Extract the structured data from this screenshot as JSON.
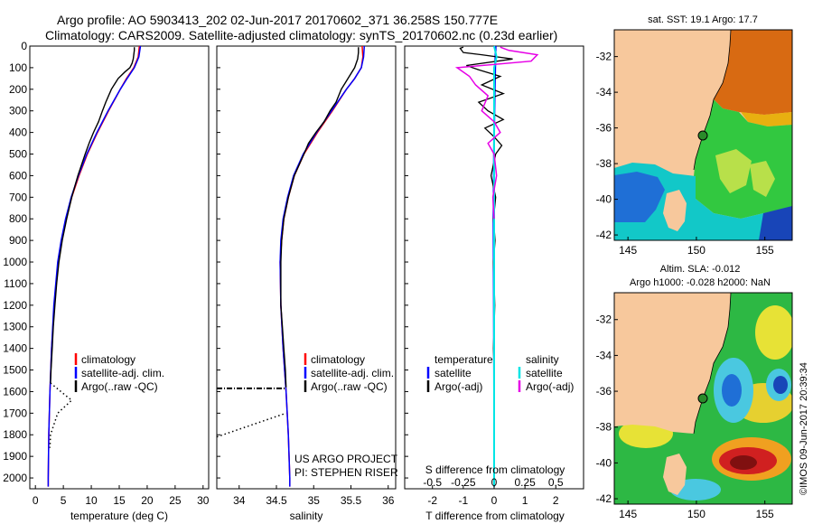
{
  "header": {
    "line1": "Argo profile: AO 5903413_202 02-Jun-2017 20170602_371 36.258S 150.777E",
    "line2": "Climatology: CARS2009. Satellite-adjusted climatology: synTS_20170602.nc (0.23d earlier)"
  },
  "depth_ticks": [
    "0",
    "100",
    "200",
    "300",
    "400",
    "500",
    "600",
    "700",
    "800",
    "900",
    "1000",
    "1100",
    "1200",
    "1300",
    "1400",
    "1500",
    "1600",
    "1700",
    "1800",
    "1900",
    "2000"
  ],
  "colors": {
    "climatology": "#ff0000",
    "satellite": "#0000ff",
    "argo": "#000000",
    "sal_satellite": "#00e5e5",
    "sal_argo": "#e600e6"
  },
  "chart_data": [
    {
      "type": "line",
      "id": "temperature",
      "xlabel": "temperature (deg C)",
      "xlim": [
        -1,
        31
      ],
      "ylim": [
        2050,
        0
      ],
      "xticks": [
        "0",
        "5",
        "10",
        "15",
        "20",
        "25",
        "30"
      ],
      "legend": [
        "climatology",
        "satellite-adj. clim.",
        "Argo(..raw -QC)"
      ],
      "series": [
        {
          "name": "climatology",
          "depth": [
            0,
            50,
            100,
            150,
            200,
            300,
            400,
            500,
            600,
            700,
            800,
            900,
            1000,
            1200,
            1400,
            1600,
            1800,
            2000,
            2040
          ],
          "values": [
            18.6,
            18.4,
            17.6,
            16.3,
            15.2,
            13.1,
            11.1,
            9.3,
            7.8,
            6.5,
            5.5,
            4.7,
            4.1,
            3.4,
            2.9,
            2.6,
            2.4,
            2.3,
            2.3
          ]
        },
        {
          "name": "satellite-adj. clim.",
          "depth": [
            0,
            50,
            100,
            150,
            200,
            300,
            400,
            500,
            600,
            700,
            800,
            900,
            1000,
            1200,
            1400,
            1600,
            1800,
            2000,
            2040
          ],
          "values": [
            18.8,
            18.5,
            17.7,
            16.4,
            15.2,
            13.0,
            11.0,
            9.2,
            7.7,
            6.4,
            5.4,
            4.6,
            4.0,
            3.3,
            2.9,
            2.6,
            2.4,
            2.3,
            2.3
          ]
        },
        {
          "name": "Argo(..raw -QC)",
          "depth": [
            5,
            20,
            40,
            60,
            80,
            100,
            120,
            150,
            200,
            260,
            300,
            350,
            400,
            450,
            500,
            600,
            700,
            800,
            900,
            1000,
            1100,
            1200,
            1300,
            1400,
            1500,
            1560
          ],
          "values": [
            17.7,
            17.7,
            17.6,
            17.5,
            17.3,
            16.9,
            16.0,
            14.8,
            13.6,
            12.6,
            12.0,
            11.3,
            10.4,
            9.6,
            8.9,
            7.6,
            6.5,
            5.6,
            4.8,
            4.2,
            3.8,
            3.5,
            3.2,
            3.0,
            2.8,
            2.7
          ]
        },
        {
          "name": "Argo raw (QC-flagged)",
          "depth": [
            1560,
            1620,
            1640,
            1700,
            1800,
            1860
          ],
          "values": [
            2.7,
            5.5,
            6.5,
            4.0,
            2.7,
            2.6
          ]
        }
      ]
    },
    {
      "type": "line",
      "id": "salinity",
      "xlabel": "salinity",
      "xlim": [
        33.7,
        36.1
      ],
      "ylim": [
        2050,
        0
      ],
      "xticks": [
        "34",
        "34.5",
        "35",
        "35.5",
        "36"
      ],
      "legend": [
        "climatology",
        "satellite-adj. clim.",
        "Argo(..raw -QC)"
      ],
      "annotation": [
        "US ARGO PROJECT",
        "PI: STEPHEN RISER"
      ],
      "series": [
        {
          "name": "climatology",
          "depth": [
            0,
            50,
            100,
            150,
            200,
            300,
            400,
            500,
            600,
            700,
            800,
            900,
            1000,
            1200,
            1400,
            1600,
            1800,
            2000,
            2040
          ],
          "values": [
            35.65,
            35.66,
            35.64,
            35.55,
            35.44,
            35.25,
            35.05,
            34.87,
            34.74,
            34.66,
            34.6,
            34.57,
            34.55,
            34.56,
            34.59,
            34.63,
            34.66,
            34.68,
            34.68
          ]
        },
        {
          "name": "satellite-adj. clim.",
          "depth": [
            0,
            50,
            100,
            150,
            200,
            300,
            400,
            500,
            600,
            700,
            800,
            900,
            1000,
            1200,
            1400,
            1600,
            1800,
            2000,
            2040
          ],
          "values": [
            35.68,
            35.67,
            35.64,
            35.55,
            35.44,
            35.24,
            35.04,
            34.86,
            34.73,
            34.65,
            34.59,
            34.56,
            34.55,
            34.56,
            34.59,
            34.63,
            34.66,
            34.68,
            34.68
          ]
        },
        {
          "name": "Argo(..raw -QC)",
          "depth": [
            5,
            30,
            60,
            100,
            150,
            200,
            260,
            300,
            350,
            400,
            450,
            500,
            600,
            700,
            800,
            900,
            1000,
            1100,
            1200,
            1300,
            1400,
            1500,
            1580
          ],
          "values": [
            35.6,
            35.6,
            35.59,
            35.55,
            35.46,
            35.37,
            35.3,
            35.22,
            35.14,
            35.03,
            34.93,
            34.87,
            34.74,
            34.66,
            34.6,
            34.57,
            34.56,
            34.56,
            34.56,
            34.58,
            34.6,
            34.62,
            34.63
          ]
        },
        {
          "name": "Argo raw flagged (horizontal)",
          "depth": [
            1585,
            1585
          ],
          "values": [
            33.7,
            34.63
          ]
        },
        {
          "name": "Argo raw flagged (slant)",
          "depth": [
            1810,
            1700
          ],
          "values": [
            33.7,
            34.63
          ]
        }
      ]
    },
    {
      "type": "line",
      "id": "difference",
      "xlabel_top": "S difference from climatology",
      "xticks_top": [
        "-0.5",
        "-0.25",
        "0",
        "0.25",
        "0.5"
      ],
      "xlabel": "T difference from climatology",
      "xticks": [
        "-2",
        "-1",
        "0",
        "1",
        "2"
      ],
      "xlim": [
        -2.9,
        2.9
      ],
      "ylim": [
        2050,
        0
      ],
      "legend_temperature": {
        "title": "temperature",
        "items": [
          "satellite",
          "Argo(-adj)"
        ]
      },
      "legend_salinity": {
        "title": "salinity",
        "items": [
          "satellite",
          "Argo(-adj)"
        ]
      },
      "series": [
        {
          "name": "temperature satellite",
          "depth": [
            0,
            200,
            400,
            800,
            1200,
            1600,
            2040
          ],
          "values": [
            0.05,
            0.02,
            0.0,
            -0.02,
            -0.01,
            0.0,
            0.0
          ]
        },
        {
          "name": "temperature Argo(-adj)",
          "depth": [
            5,
            10,
            30,
            40,
            60,
            90,
            110,
            140,
            180,
            220,
            260,
            300,
            340,
            380,
            420,
            460,
            500,
            600,
            700,
            800,
            900,
            1000,
            1100,
            1200,
            1300,
            1400,
            1500
          ],
          "values": [
            -1.0,
            -1.1,
            -1.0,
            -0.4,
            0.6,
            -0.9,
            -0.5,
            0.2,
            -0.4,
            0.3,
            -0.5,
            -0.2,
            0.3,
            -0.3,
            0.0,
            0.25,
            0.05,
            -0.1,
            0.05,
            -0.02,
            0.03,
            -0.02,
            0.0,
            0.02,
            0.0,
            -0.02,
            0.0
          ]
        },
        {
          "name": "salinity satellite",
          "depth": [
            0,
            50,
            100,
            400,
            800,
            1200,
            1600,
            2040
          ],
          "values": [
            0.0,
            0.02,
            0.0,
            0.0,
            0.0,
            0.0,
            0.0,
            0.0
          ]
        },
        {
          "name": "salinity Argo(-adj)",
          "depth": [
            5,
            20,
            40,
            70,
            100,
            140,
            180,
            230,
            300,
            350,
            400,
            450,
            500,
            600,
            700,
            800
          ],
          "values": [
            0.05,
            0.12,
            0.35,
            0.3,
            -0.3,
            -0.2,
            -0.15,
            -0.05,
            -0.1,
            0.0,
            0.05,
            -0.05,
            0.0,
            0.02,
            -0.01,
            0.0
          ]
        }
      ]
    },
    {
      "type": "heatmap",
      "id": "sst_map",
      "title": "sat. SST: 19.1  Argo: 17.7",
      "xticks": [
        "145",
        "150",
        "155"
      ],
      "yticks": [
        "-32",
        "-34",
        "-36",
        "-38",
        "-40",
        "-42"
      ],
      "xlim": [
        144,
        157
      ],
      "ylim": [
        -42.3,
        -30.5
      ],
      "profile_location": [
        150.777,
        -36.258
      ]
    },
    {
      "type": "heatmap",
      "id": "sla_map",
      "title_line1": "Altim. SLA: -0.012",
      "title_line2": "Argo h1000: -0.028 h2000: NaN",
      "xticks": [
        "145",
        "150",
        "155"
      ],
      "yticks": [
        "-32",
        "-34",
        "-36",
        "-38",
        "-40",
        "-42"
      ],
      "xlim": [
        144,
        157
      ],
      "ylim": [
        -42.3,
        -30.5
      ],
      "profile_location": [
        150.777,
        -36.258
      ]
    }
  ],
  "credit": "©IMOS 09-Jun-2017 20:39:34"
}
